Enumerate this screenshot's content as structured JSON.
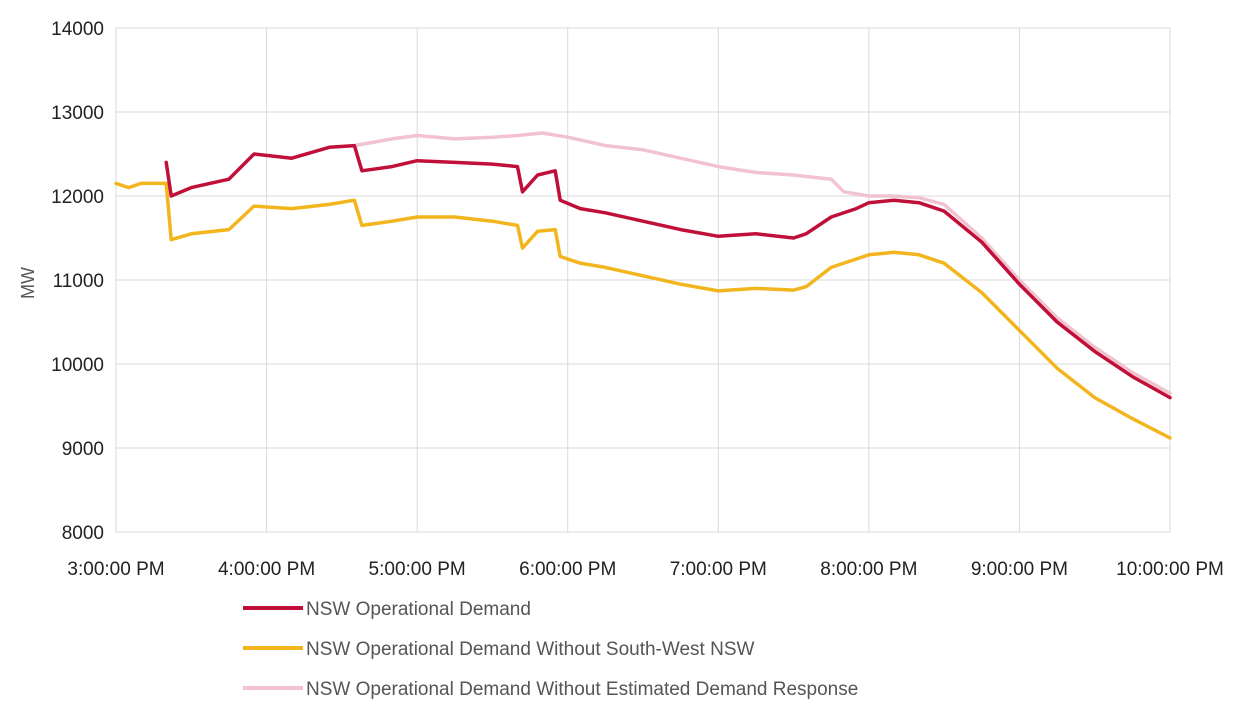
{
  "chart_data": {
    "type": "line",
    "title": "",
    "xlabel": "",
    "ylabel": "MW",
    "ylim": [
      8000,
      14000
    ],
    "yticks": [
      8000,
      9000,
      10000,
      11000,
      12000,
      13000,
      14000
    ],
    "x_ticks": [
      "3:00:00 PM",
      "4:00:00 PM",
      "5:00:00 PM",
      "6:00:00 PM",
      "7:00:00 PM",
      "8:00:00 PM",
      "9:00:00 PM",
      "10:00:00 PM"
    ],
    "grid": true,
    "legend_position": "bottom",
    "series": [
      {
        "name": "NSW Operational Demand",
        "color": "#c0103a",
        "x": [
          "3:20 PM",
          "3:22 PM",
          "3:30 PM",
          "3:45 PM",
          "3:55 PM",
          "4:10 PM",
          "4:25 PM",
          "4:35 PM",
          "4:38 PM",
          "4:50 PM",
          "5:00 PM",
          "5:15 PM",
          "5:30 PM",
          "5:40 PM",
          "5:42 PM",
          "5:48 PM",
          "5:55 PM",
          "5:57 PM",
          "6:05 PM",
          "6:15 PM",
          "6:30 PM",
          "6:45 PM",
          "7:00 PM",
          "7:15 PM",
          "7:30 PM",
          "7:35 PM",
          "7:45 PM",
          "7:55 PM",
          "8:00 PM",
          "8:10 PM",
          "8:20 PM",
          "8:30 PM",
          "8:45 PM",
          "9:00 PM",
          "9:15 PM",
          "9:30 PM",
          "9:45 PM",
          "10:00 PM"
        ],
        "values": [
          12400,
          12000,
          12100,
          12200,
          12500,
          12450,
          12580,
          12600,
          12300,
          12350,
          12420,
          12400,
          12380,
          12350,
          12050,
          12250,
          12300,
          11950,
          11850,
          11800,
          11700,
          11600,
          11520,
          11550,
          11500,
          11550,
          11750,
          11850,
          11920,
          11950,
          11920,
          11820,
          11450,
          10950,
          10500,
          10150,
          9850,
          9600
        ]
      },
      {
        "name": "NSW Operational Demand Without South-West NSW",
        "color": "#f2b51d",
        "x": [
          "3:00 PM",
          "3:05 PM",
          "3:10 PM",
          "3:20 PM",
          "3:22 PM",
          "3:30 PM",
          "3:45 PM",
          "3:55 PM",
          "4:10 PM",
          "4:25 PM",
          "4:35 PM",
          "4:38 PM",
          "4:50 PM",
          "5:00 PM",
          "5:15 PM",
          "5:30 PM",
          "5:40 PM",
          "5:42 PM",
          "5:48 PM",
          "5:55 PM",
          "5:57 PM",
          "6:05 PM",
          "6:15 PM",
          "6:30 PM",
          "6:45 PM",
          "7:00 PM",
          "7:15 PM",
          "7:30 PM",
          "7:35 PM",
          "7:45 PM",
          "7:55 PM",
          "8:00 PM",
          "8:10 PM",
          "8:20 PM",
          "8:30 PM",
          "8:45 PM",
          "9:00 PM",
          "9:15 PM",
          "9:30 PM",
          "9:45 PM",
          "10:00 PM"
        ],
        "values": [
          12150,
          12100,
          12150,
          12150,
          11480,
          11550,
          11600,
          11880,
          11850,
          11900,
          11950,
          11650,
          11700,
          11750,
          11750,
          11700,
          11650,
          11380,
          11580,
          11600,
          11280,
          11200,
          11150,
          11050,
          10950,
          10870,
          10900,
          10880,
          10920,
          11150,
          11250,
          11300,
          11330,
          11300,
          11200,
          10850,
          10400,
          9950,
          9600,
          9350,
          9120
        ]
      },
      {
        "name": "NSW Operational Demand Without Estimated Demand Response",
        "color": "#f2c3cf",
        "x": [
          "4:35 PM",
          "4:50 PM",
          "5:00 PM",
          "5:15 PM",
          "5:30 PM",
          "5:40 PM",
          "5:50 PM",
          "6:00 PM",
          "6:15 PM",
          "6:30 PM",
          "6:45 PM",
          "7:00 PM",
          "7:15 PM",
          "7:30 PM",
          "7:45 PM",
          "7:50 PM",
          "8:00 PM",
          "8:10 PM",
          "8:20 PM",
          "8:30 PM",
          "8:45 PM",
          "9:00 PM",
          "9:15 PM",
          "9:30 PM",
          "9:45 PM",
          "10:00 PM"
        ],
        "values": [
          12600,
          12680,
          12720,
          12680,
          12700,
          12720,
          12750,
          12700,
          12600,
          12550,
          12450,
          12350,
          12280,
          12250,
          12200,
          12050,
          12000,
          12000,
          11980,
          11900,
          11500,
          11000,
          10550,
          10200,
          9900,
          9650
        ]
      }
    ]
  }
}
